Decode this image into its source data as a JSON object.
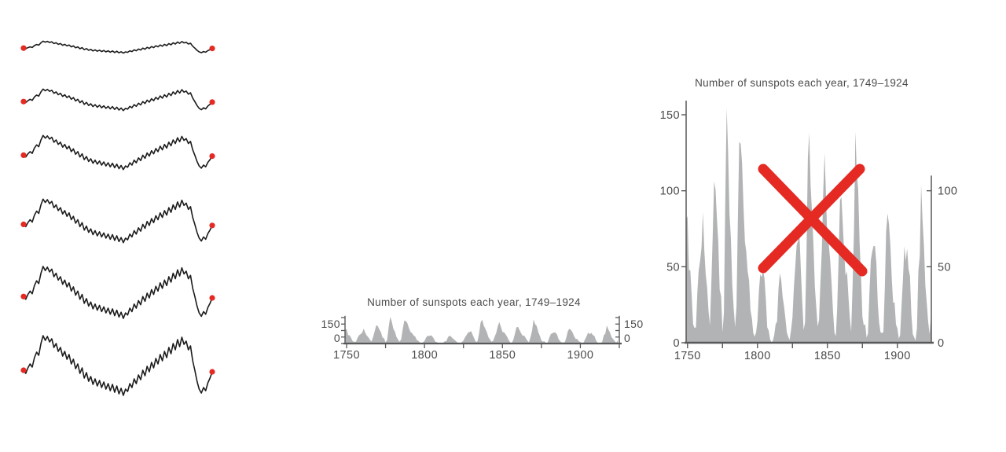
{
  "colors": {
    "background": "#ffffff",
    "red": "#e42a23",
    "line": "#1c1c1c",
    "area": "#b2b3b5",
    "axis": "#58595b",
    "text": "#4a4b4d"
  },
  "small_chart": {
    "title": "Number of sunspots each year, 1749–1924",
    "y_left_labels": [
      "150",
      "0"
    ],
    "y_right_labels": [
      "150",
      "0"
    ],
    "x_labels": [
      "1750",
      "1800",
      "1850",
      "1900"
    ]
  },
  "large_chart": {
    "title": "Number of sunspots each year, 1749–1924",
    "y_left_labels": [
      "150",
      "100",
      "50",
      "0"
    ],
    "y_right_labels": [
      "100",
      "50",
      "0"
    ],
    "x_labels": [
      "1750",
      "1800",
      "1850",
      "1900"
    ],
    "annotation": "red-x-rejection-mark"
  },
  "chart_data": [
    {
      "id": "random-walk-sparklines",
      "type": "line",
      "title": "",
      "description": "Same time series drawn six times at increasing vertical scale; endpoints marked with red dots",
      "row_scales": [
        20,
        36,
        57,
        73,
        87,
        100
      ],
      "values": [
        0.44,
        0.4,
        0.47,
        0.52,
        0.48,
        0.6,
        0.67,
        0.63,
        0.78,
        0.88,
        0.82,
        0.87,
        0.8,
        0.84,
        0.73,
        0.78,
        0.68,
        0.73,
        0.62,
        0.68,
        0.58,
        0.64,
        0.52,
        0.58,
        0.46,
        0.52,
        0.4,
        0.47,
        0.34,
        0.41,
        0.3,
        0.36,
        0.26,
        0.33,
        0.24,
        0.31,
        0.22,
        0.29,
        0.2,
        0.27,
        0.18,
        0.26,
        0.16,
        0.24,
        0.14,
        0.21,
        0.12,
        0.2,
        0.17,
        0.27,
        0.22,
        0.33,
        0.27,
        0.38,
        0.32,
        0.44,
        0.37,
        0.49,
        0.42,
        0.54,
        0.47,
        0.59,
        0.52,
        0.64,
        0.56,
        0.68,
        0.6,
        0.73,
        0.65,
        0.78,
        0.7,
        0.83,
        0.74,
        0.86,
        0.77,
        0.81,
        0.7,
        0.75,
        0.56,
        0.44,
        0.3,
        0.2,
        0.15,
        0.22,
        0.18,
        0.28,
        0.34,
        0.42
      ]
    },
    {
      "id": "sunspots",
      "type": "area",
      "title": "Number of sunspots each year, 1749–1924",
      "xlabel": "",
      "ylabel": "",
      "x_start": 1749,
      "x_end": 1924,
      "ylim": [
        0,
        160
      ],
      "yticks": [
        0,
        50,
        100,
        150
      ],
      "yticks_minor_small_chart": [
        0,
        37.5,
        75,
        112.5,
        150
      ],
      "xticks": [
        1750,
        1800,
        1850,
        1900
      ],
      "xticks_minor": [
        1775,
        1825,
        1875,
        1925
      ],
      "right_axis_top_value_large": 110,
      "values": [
        80.9,
        83.4,
        47.7,
        47.8,
        30.7,
        12.2,
        9.6,
        10.2,
        32.4,
        47.6,
        54.0,
        62.9,
        85.9,
        61.2,
        45.1,
        36.4,
        20.9,
        11.4,
        37.8,
        69.8,
        106.1,
        100.8,
        81.6,
        66.5,
        34.8,
        30.6,
        7.0,
        19.8,
        92.5,
        154.4,
        125.9,
        84.8,
        68.1,
        38.5,
        22.8,
        10.2,
        24.1,
        82.9,
        132.0,
        130.9,
        118.1,
        89.9,
        66.6,
        60.0,
        46.9,
        41.0,
        21.3,
        16.0,
        6.4,
        4.1,
        6.8,
        14.5,
        34.0,
        45.0,
        43.1,
        47.5,
        42.2,
        28.1,
        10.1,
        8.1,
        2.5,
        0.0,
        1.4,
        5.0,
        12.2,
        13.9,
        35.4,
        45.8,
        41.1,
        30.1,
        23.9,
        15.6,
        6.6,
        4.0,
        1.8,
        8.5,
        16.6,
        36.3,
        49.6,
        64.2,
        67.0,
        70.9,
        47.8,
        27.5,
        8.5,
        13.2,
        56.9,
        121.5,
        138.3,
        103.2,
        85.7,
        64.6,
        36.7,
        24.2,
        10.7,
        15.0,
        40.1,
        61.5,
        98.5,
        124.7,
        96.3,
        66.6,
        64.5,
        54.1,
        39.0,
        20.6,
        6.7,
        4.3,
        22.7,
        54.8,
        93.8,
        95.8,
        77.2,
        59.1,
        44.0,
        47.0,
        30.5,
        16.3,
        7.3,
        37.6,
        74.0,
        139.0,
        111.2,
        101.6,
        66.2,
        44.7,
        17.0,
        11.3,
        12.4,
        3.4,
        6.0,
        32.3,
        54.3,
        59.7,
        63.7,
        63.5,
        52.2,
        25.4,
        13.1,
        6.8,
        6.3,
        7.1,
        35.6,
        73.0,
        85.1,
        78.0,
        64.0,
        41.8,
        26.2,
        26.7,
        12.1,
        9.5,
        2.7,
        5.0,
        24.4,
        42.0,
        63.5,
        53.8,
        62.0,
        48.5,
        43.9,
        18.6,
        5.7,
        3.6,
        1.4,
        9.6,
        47.4,
        57.1,
        103.9,
        80.6,
        63.6,
        37.6,
        26.1,
        14.2,
        5.8,
        16.7
      ]
    }
  ]
}
